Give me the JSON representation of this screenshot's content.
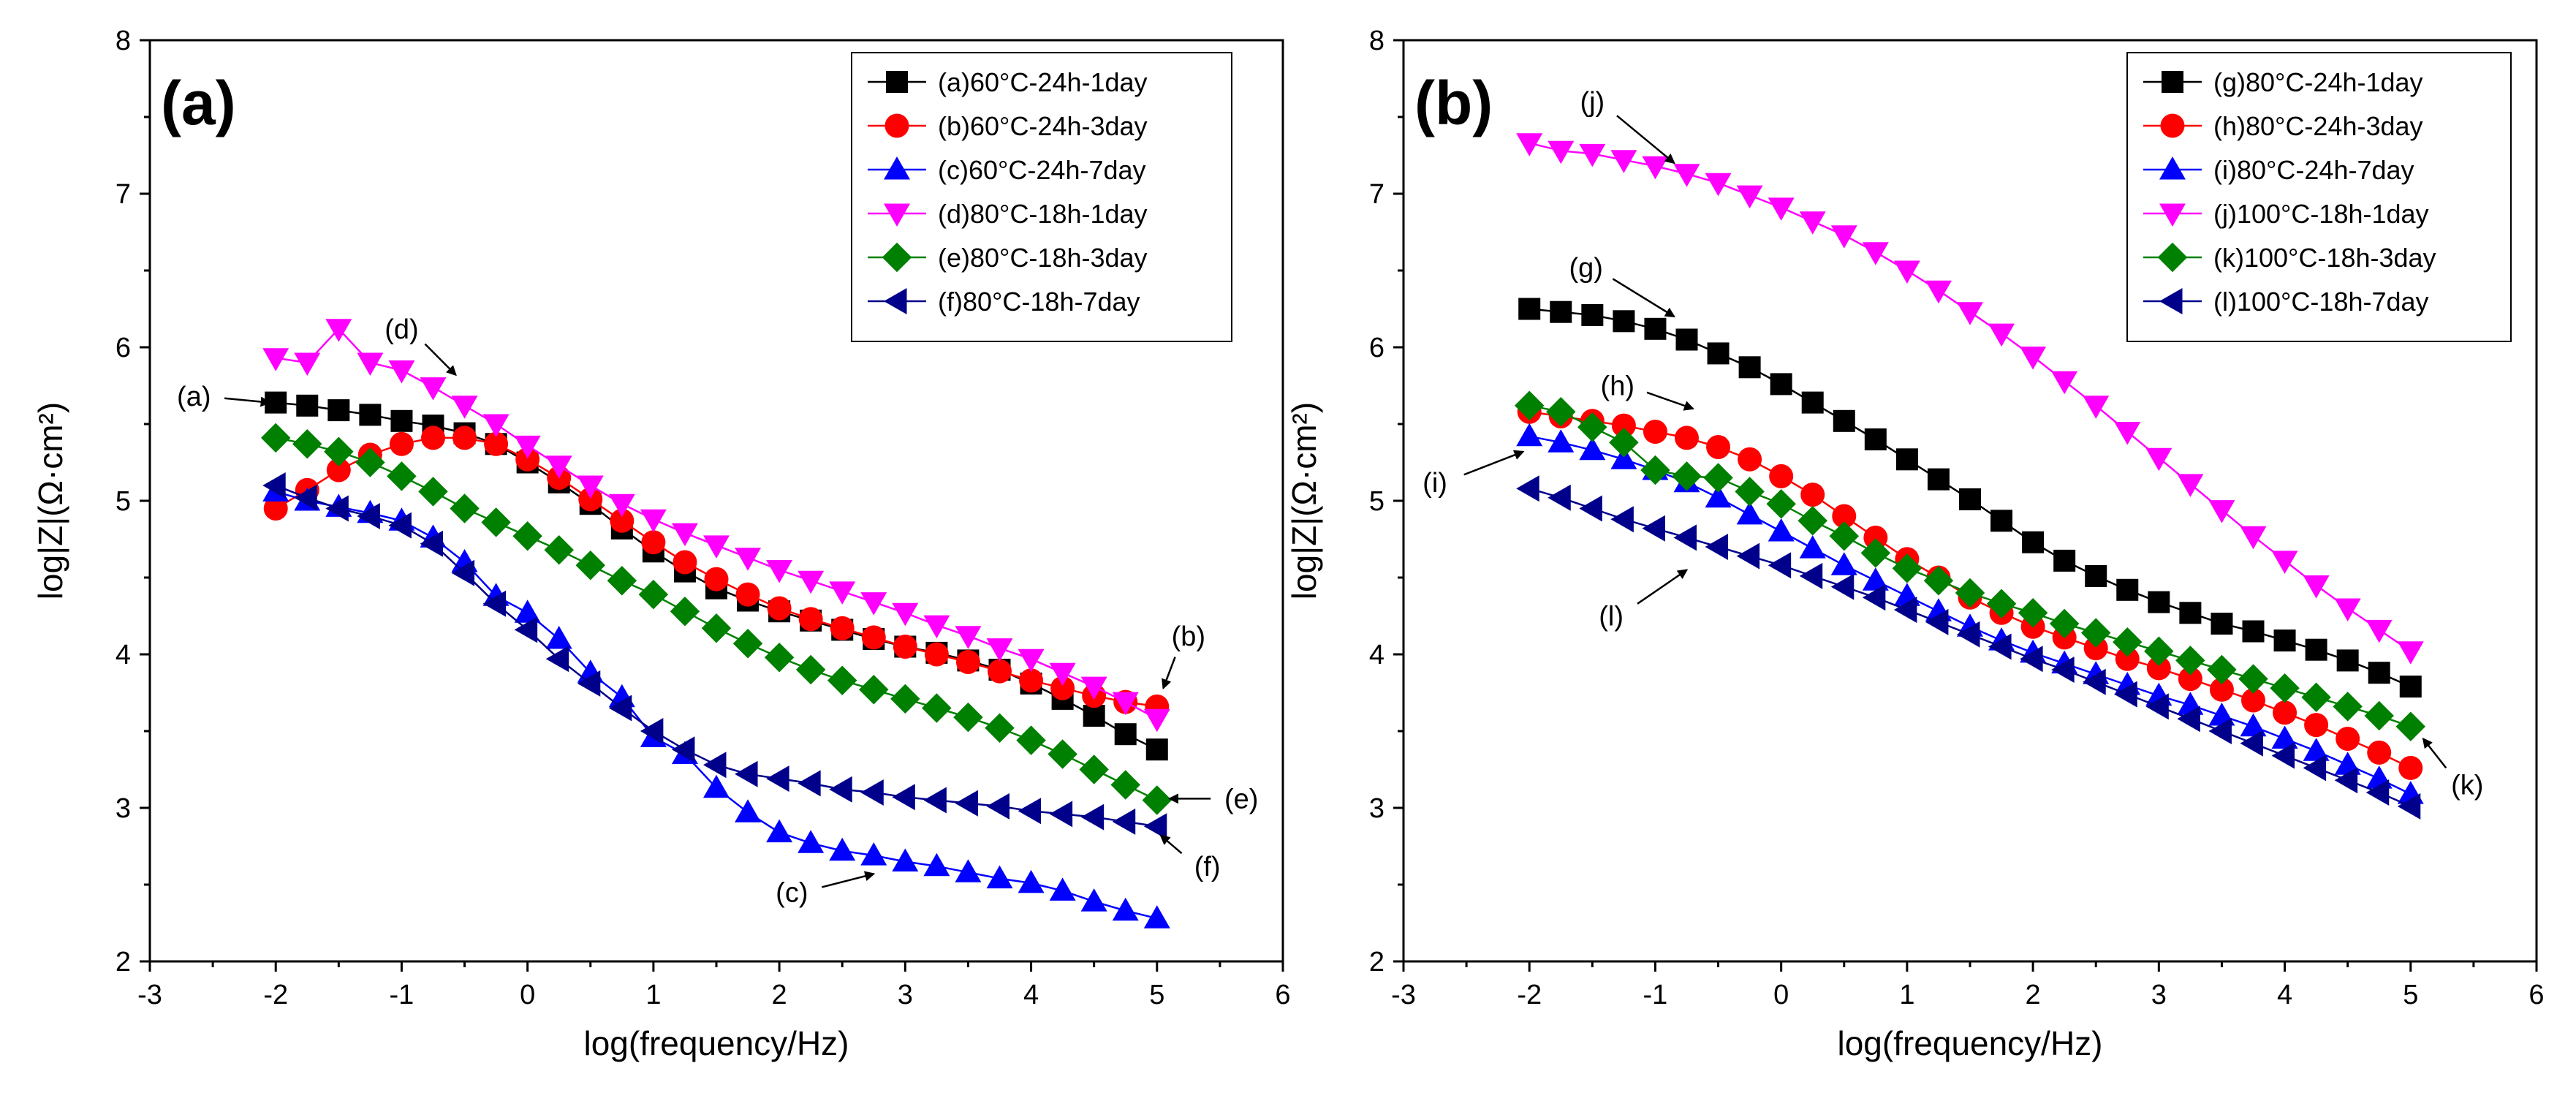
{
  "chart_data": [
    {
      "type": "line",
      "panel_label": "(a)",
      "xlabel": "log(frequency/Hz)",
      "ylabel": "log|Z|(Ω·cm²)",
      "xlim": [
        -3,
        6
      ],
      "ylim": [
        2,
        8
      ],
      "xticks": [
        -3,
        -2,
        -1,
        0,
        1,
        2,
        3,
        4,
        5,
        6
      ],
      "yticks": [
        2,
        3,
        4,
        5,
        6,
        7,
        8
      ],
      "legend_position": "top-right",
      "series": [
        {
          "name": "(a)60°C-24h-1day",
          "color": "#000000",
          "marker": "square",
          "x": [
            -2,
            -1.75,
            -1.5,
            -1.25,
            -1,
            -0.75,
            -0.5,
            -0.25,
            0,
            0.25,
            0.5,
            0.75,
            1,
            1.25,
            1.5,
            1.75,
            2,
            2.25,
            2.5,
            2.75,
            3,
            3.25,
            3.5,
            3.75,
            4,
            4.25,
            4.5,
            4.75,
            5
          ],
          "y": [
            5.64,
            5.62,
            5.59,
            5.56,
            5.52,
            5.49,
            5.44,
            5.37,
            5.25,
            5.12,
            4.98,
            4.82,
            4.67,
            4.54,
            4.43,
            4.35,
            4.28,
            4.22,
            4.16,
            4.1,
            4.05,
            4.01,
            3.96,
            3.9,
            3.81,
            3.71,
            3.6,
            3.48,
            3.38
          ]
        },
        {
          "name": "(b)60°C-24h-3day",
          "color": "#ff0000",
          "marker": "circle",
          "x": [
            -2,
            -1.75,
            -1.5,
            -1.25,
            -1,
            -0.75,
            -0.5,
            -0.25,
            0,
            0.25,
            0.5,
            0.75,
            1,
            1.25,
            1.5,
            1.75,
            2,
            2.25,
            2.5,
            2.75,
            3,
            3.25,
            3.5,
            3.75,
            4,
            4.25,
            4.5,
            4.75,
            5
          ],
          "y": [
            4.95,
            5.07,
            5.2,
            5.3,
            5.37,
            5.41,
            5.41,
            5.37,
            5.27,
            5.15,
            5.01,
            4.87,
            4.73,
            4.6,
            4.49,
            4.39,
            4.3,
            4.23,
            4.17,
            4.11,
            4.05,
            4,
            3.95,
            3.89,
            3.83,
            3.78,
            3.73,
            3.69,
            3.66
          ]
        },
        {
          "name": "(c)60°C-24h-7day",
          "color": "#0000ff",
          "marker": "triangle-up",
          "x": [
            -2,
            -1.75,
            -1.5,
            -1.25,
            -1,
            -0.75,
            -0.5,
            -0.25,
            0,
            0.25,
            0.5,
            0.75,
            1,
            1.25,
            1.5,
            1.75,
            2,
            2.25,
            2.5,
            2.75,
            3,
            3.25,
            3.5,
            3.75,
            4,
            4.25,
            4.5,
            4.75,
            5
          ],
          "y": [
            5.06,
            5,
            4.96,
            4.92,
            4.87,
            4.76,
            4.6,
            4.38,
            4.27,
            4.1,
            3.88,
            3.72,
            3.46,
            3.35,
            3.13,
            2.97,
            2.84,
            2.77,
            2.72,
            2.69,
            2.65,
            2.62,
            2.58,
            2.54,
            2.51,
            2.46,
            2.39,
            2.33,
            2.28
          ]
        },
        {
          "name": "(d)80°C-18h-1day",
          "color": "#ff00ff",
          "marker": "triangle-down",
          "x": [
            -2,
            -1.75,
            -1.5,
            -1.25,
            -1,
            -0.75,
            -0.5,
            -0.25,
            0,
            0.25,
            0.5,
            0.75,
            1,
            1.25,
            1.5,
            1.75,
            2,
            2.25,
            2.5,
            2.75,
            3,
            3.25,
            3.5,
            3.75,
            4,
            4.25,
            4.5,
            4.75,
            5
          ],
          "y": [
            5.93,
            5.9,
            6.12,
            5.9,
            5.85,
            5.74,
            5.62,
            5.5,
            5.36,
            5.23,
            5.1,
            4.98,
            4.88,
            4.79,
            4.71,
            4.63,
            4.55,
            4.48,
            4.41,
            4.34,
            4.27,
            4.19,
            4.12,
            4.04,
            3.97,
            3.88,
            3.79,
            3.69,
            3.58
          ]
        },
        {
          "name": "(e)80°C-18h-3day",
          "color": "#008000",
          "marker": "diamond",
          "x": [
            -2,
            -1.75,
            -1.5,
            -1.25,
            -1,
            -0.75,
            -0.5,
            -0.25,
            0,
            0.25,
            0.5,
            0.75,
            1,
            1.25,
            1.5,
            1.75,
            2,
            2.25,
            2.5,
            2.75,
            3,
            3.25,
            3.5,
            3.75,
            4,
            4.25,
            4.5,
            4.75,
            5
          ],
          "y": [
            5.41,
            5.37,
            5.32,
            5.25,
            5.16,
            5.06,
            4.95,
            4.86,
            4.77,
            4.68,
            4.58,
            4.48,
            4.39,
            4.28,
            4.17,
            4.07,
            3.98,
            3.9,
            3.83,
            3.77,
            3.71,
            3.65,
            3.59,
            3.52,
            3.44,
            3.35,
            3.25,
            3.15,
            3.05
          ]
        },
        {
          "name": "(f)80°C-18h-7day",
          "color": "#00008b",
          "marker": "triangle-left",
          "x": [
            -2,
            -1.75,
            -1.5,
            -1.25,
            -1,
            -0.75,
            -0.5,
            -0.25,
            0,
            0.25,
            0.5,
            0.75,
            1,
            1.25,
            1.5,
            1.75,
            2,
            2.25,
            2.5,
            2.75,
            3,
            3.25,
            3.5,
            3.75,
            4,
            4.25,
            4.5,
            4.75,
            5
          ],
          "y": [
            5.1,
            5.02,
            4.95,
            4.9,
            4.84,
            4.72,
            4.53,
            4.33,
            4.16,
            3.97,
            3.81,
            3.65,
            3.5,
            3.38,
            3.28,
            3.22,
            3.19,
            3.16,
            3.12,
            3.1,
            3.07,
            3.05,
            3.03,
            3.01,
            2.98,
            2.96,
            2.94,
            2.91,
            2.88
          ]
        }
      ],
      "annotations": [
        {
          "text": "(a)",
          "x": -2.65,
          "y": 5.68,
          "arrow_x": -2.05,
          "arrow_y": 5.64
        },
        {
          "text": "(d)",
          "x": -1,
          "y": 6.12,
          "arrow_x": -0.57,
          "arrow_y": 5.82
        },
        {
          "text": "(b)",
          "x": 5.25,
          "y": 4.12,
          "arrow_x": 5.05,
          "arrow_y": 3.78
        },
        {
          "text": "(e)",
          "x": 5.67,
          "y": 3.06,
          "arrow_x": 5.1,
          "arrow_y": 3.06
        },
        {
          "text": "(f)",
          "x": 5.4,
          "y": 2.62,
          "arrow_x": 5.03,
          "arrow_y": 2.82
        },
        {
          "text": "(c)",
          "x": 2.1,
          "y": 2.45,
          "arrow_x": 2.75,
          "arrow_y": 2.57
        }
      ]
    },
    {
      "type": "line",
      "panel_label": "(b)",
      "xlabel": "log(frequency/Hz)",
      "ylabel": "log|Z|(Ω·cm²)",
      "xlim": [
        -3,
        6
      ],
      "ylim": [
        2,
        8
      ],
      "xticks": [
        -3,
        -2,
        -1,
        0,
        1,
        2,
        3,
        4,
        5,
        6
      ],
      "yticks": [
        2,
        3,
        4,
        5,
        6,
        7,
        8
      ],
      "legend_position": "top-right",
      "series": [
        {
          "name": "(g)80°C-24h-1day",
          "color": "#000000",
          "marker": "square",
          "x": [
            -2,
            -1.75,
            -1.5,
            -1.25,
            -1,
            -0.75,
            -0.5,
            -0.25,
            0,
            0.25,
            0.5,
            0.75,
            1,
            1.25,
            1.5,
            1.75,
            2,
            2.25,
            2.5,
            2.75,
            3,
            3.25,
            3.5,
            3.75,
            4,
            4.25,
            4.5,
            4.75,
            5
          ],
          "y": [
            6.25,
            6.23,
            6.21,
            6.17,
            6.12,
            6.05,
            5.96,
            5.87,
            5.76,
            5.64,
            5.52,
            5.4,
            5.27,
            5.14,
            5.01,
            4.87,
            4.73,
            4.61,
            4.51,
            4.42,
            4.34,
            4.27,
            4.2,
            4.15,
            4.09,
            4.03,
            3.96,
            3.88,
            3.79
          ]
        },
        {
          "name": "(h)80°C-24h-3day",
          "color": "#ff0000",
          "marker": "circle",
          "x": [
            -2,
            -1.75,
            -1.5,
            -1.25,
            -1,
            -0.75,
            -0.5,
            -0.25,
            0,
            0.25,
            0.5,
            0.75,
            1,
            1.25,
            1.5,
            1.75,
            2,
            2.25,
            2.5,
            2.75,
            3,
            3.25,
            3.5,
            3.75,
            4,
            4.25,
            4.5,
            4.75,
            5
          ],
          "y": [
            5.58,
            5.55,
            5.52,
            5.49,
            5.45,
            5.41,
            5.35,
            5.27,
            5.16,
            5.04,
            4.9,
            4.76,
            4.62,
            4.5,
            4.37,
            4.27,
            4.18,
            4.11,
            4.04,
            3.97,
            3.91,
            3.84,
            3.77,
            3.7,
            3.62,
            3.54,
            3.45,
            3.36,
            3.26
          ]
        },
        {
          "name": "(i)80°C-24h-7day",
          "color": "#0000ff",
          "marker": "triangle-up",
          "x": [
            -2,
            -1.75,
            -1.5,
            -1.25,
            -1,
            -0.75,
            -0.5,
            -0.25,
            0,
            0.25,
            0.5,
            0.75,
            1,
            1.25,
            1.5,
            1.75,
            2,
            2.25,
            2.5,
            2.75,
            3,
            3.25,
            3.5,
            3.75,
            4,
            4.25,
            4.5,
            4.75,
            5
          ],
          "y": [
            5.42,
            5.38,
            5.33,
            5.27,
            5.2,
            5.12,
            5.02,
            4.91,
            4.8,
            4.69,
            4.58,
            4.48,
            4.38,
            4.28,
            4.18,
            4.09,
            4.01,
            3.94,
            3.87,
            3.8,
            3.73,
            3.67,
            3.6,
            3.53,
            3.45,
            3.37,
            3.28,
            3.19,
            3.09
          ]
        },
        {
          "name": "(j)100°C-18h-1day",
          "color": "#ff00ff",
          "marker": "triangle-down",
          "x": [
            -2,
            -1.75,
            -1.5,
            -1.25,
            -1,
            -0.75,
            -0.5,
            -0.25,
            0,
            0.25,
            0.5,
            0.75,
            1,
            1.25,
            1.5,
            1.75,
            2,
            2.25,
            2.5,
            2.75,
            3,
            3.25,
            3.5,
            3.75,
            4,
            4.25,
            4.5,
            4.75,
            5
          ],
          "y": [
            7.33,
            7.28,
            7.26,
            7.22,
            7.18,
            7.13,
            7.07,
            6.99,
            6.91,
            6.82,
            6.73,
            6.62,
            6.5,
            6.37,
            6.23,
            6.09,
            5.94,
            5.78,
            5.62,
            5.45,
            5.28,
            5.11,
            4.94,
            4.77,
            4.61,
            4.45,
            4.3,
            4.16,
            4.02
          ]
        },
        {
          "name": "(k)100°C-18h-3day",
          "color": "#008000",
          "marker": "diamond",
          "x": [
            -2,
            -1.75,
            -1.5,
            -1.25,
            -1,
            -0.75,
            -0.5,
            -0.25,
            0,
            0.25,
            0.5,
            0.75,
            1,
            1.25,
            1.5,
            1.75,
            2,
            2.25,
            2.5,
            2.75,
            3,
            3.25,
            3.5,
            3.75,
            4,
            4.25,
            4.5,
            4.75,
            5
          ],
          "y": [
            5.62,
            5.58,
            5.48,
            5.38,
            5.2,
            5.16,
            5.15,
            5.06,
            4.98,
            4.87,
            4.77,
            4.66,
            4.56,
            4.48,
            4.4,
            4.33,
            4.27,
            4.2,
            4.14,
            4.08,
            4.02,
            3.96,
            3.9,
            3.84,
            3.78,
            3.72,
            3.66,
            3.6,
            3.53
          ]
        },
        {
          "name": "(l)100°C-18h-7day",
          "color": "#00008b",
          "marker": "triangle-left",
          "x": [
            -2,
            -1.75,
            -1.5,
            -1.25,
            -1,
            -0.75,
            -0.5,
            -0.25,
            0,
            0.25,
            0.5,
            0.75,
            1,
            1.25,
            1.5,
            1.75,
            2,
            2.25,
            2.5,
            2.75,
            3,
            3.25,
            3.5,
            3.75,
            4,
            4.25,
            4.5,
            4.75,
            5
          ],
          "y": [
            5.08,
            5.02,
            4.95,
            4.88,
            4.82,
            4.76,
            4.7,
            4.64,
            4.58,
            4.51,
            4.44,
            4.37,
            4.29,
            4.21,
            4.13,
            4.05,
            3.97,
            3.9,
            3.82,
            3.74,
            3.66,
            3.58,
            3.5,
            3.42,
            3.34,
            3.26,
            3.18,
            3.1,
            3.01
          ]
        }
      ],
      "annotations": [
        {
          "text": "(j)",
          "x": -1.5,
          "y": 7.6,
          "arrow_x": -0.85,
          "arrow_y": 7.2
        },
        {
          "text": "(g)",
          "x": -1.55,
          "y": 6.52,
          "arrow_x": -0.85,
          "arrow_y": 6.2
        },
        {
          "text": "(h)",
          "x": -1.3,
          "y": 5.75,
          "arrow_x": -0.7,
          "arrow_y": 5.6
        },
        {
          "text": "(i)",
          "x": -2.75,
          "y": 5.12,
          "arrow_x": -2.05,
          "arrow_y": 5.32
        },
        {
          "text": "(l)",
          "x": -1.35,
          "y": 4.25,
          "arrow_x": -0.75,
          "arrow_y": 4.55
        },
        {
          "text": "(k)",
          "x": 5.45,
          "y": 3.15,
          "arrow_x": 5.1,
          "arrow_y": 3.45
        }
      ]
    }
  ]
}
